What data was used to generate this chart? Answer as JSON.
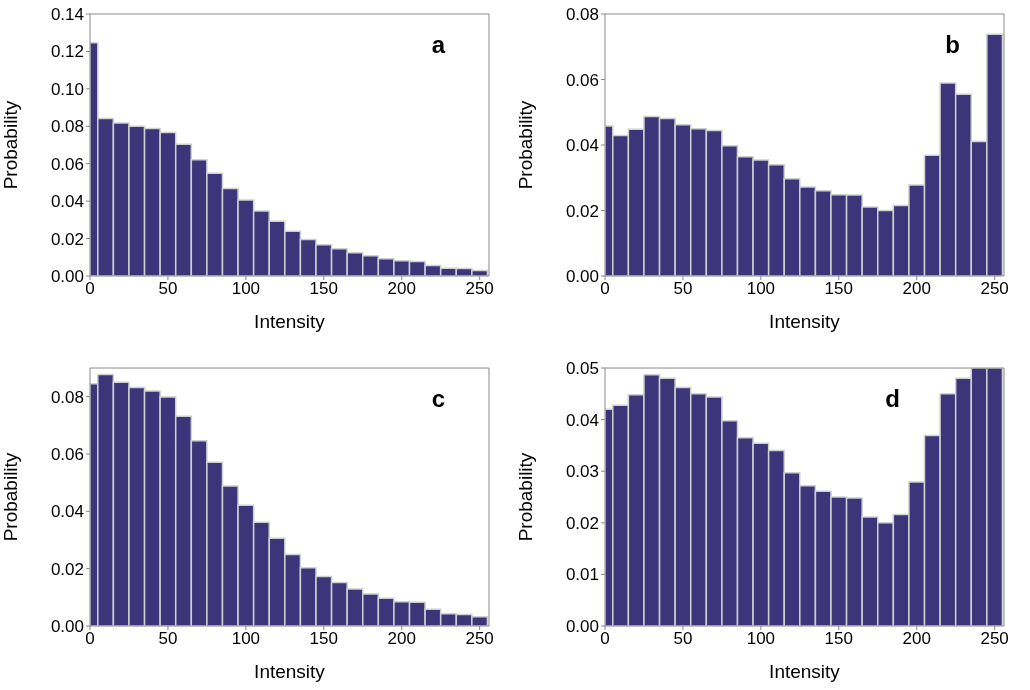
{
  "chart_data": [
    {
      "type": "histogram",
      "xlabel": "Intensity",
      "ylabel": "Probability",
      "annotations": [
        "a"
      ],
      "color": "#3c357a",
      "bins": [
        0,
        5,
        15,
        25,
        35,
        45,
        55,
        65,
        75,
        85,
        95,
        105,
        115,
        125,
        135,
        145,
        155,
        165,
        175,
        185,
        195,
        205,
        215,
        225,
        235,
        245,
        255
      ],
      "values": [
        0.1247,
        0.0842,
        0.0818,
        0.08,
        0.0788,
        0.0767,
        0.0704,
        0.0621,
        0.0549,
        0.0467,
        0.0406,
        0.0347,
        0.0293,
        0.0239,
        0.0195,
        0.0167,
        0.0145,
        0.0124,
        0.0108,
        0.0092,
        0.0082,
        0.0078,
        0.0056,
        0.0042,
        0.004,
        0.003
      ],
      "xlim": [
        0,
        256
      ],
      "xticks": [
        0,
        50,
        100,
        150,
        200,
        250
      ],
      "ylim": [
        0,
        0.14
      ],
      "yticks": [
        {
          "value": 0,
          "label": "0.00"
        },
        {
          "value": 0.02,
          "label": "0.02"
        },
        {
          "value": 0.04,
          "label": "0.04"
        },
        {
          "value": 0.06,
          "label": "0.06"
        },
        {
          "value": 0.08,
          "label": "0.08"
        },
        {
          "value": 0.1,
          "label": "0.10"
        },
        {
          "value": 0.12,
          "label": "0.12"
        },
        {
          "value": 0.14,
          "label": "0.14"
        }
      ]
    },
    {
      "type": "histogram",
      "xlabel": "Intensity",
      "ylabel": "Probability",
      "annotations": [
        "b"
      ],
      "color": "#3c357a",
      "bins": [
        0,
        5,
        15,
        25,
        35,
        45,
        55,
        65,
        75,
        85,
        95,
        105,
        115,
        125,
        135,
        145,
        155,
        165,
        175,
        185,
        195,
        205,
        215,
        225,
        235,
        245,
        255
      ],
      "values": [
        0.0458,
        0.0429,
        0.0448,
        0.0487,
        0.0481,
        0.0462,
        0.045,
        0.0444,
        0.0398,
        0.0364,
        0.0354,
        0.034,
        0.0297,
        0.0272,
        0.026,
        0.0248,
        0.0247,
        0.0211,
        0.02,
        0.0215,
        0.0278,
        0.0369,
        0.0589,
        0.0555,
        0.0411,
        0.0738
      ],
      "xlim": [
        0,
        256
      ],
      "xticks": [
        0,
        50,
        100,
        150,
        200,
        250
      ],
      "ylim": [
        0,
        0.08
      ],
      "yticks": [
        {
          "value": 0,
          "label": "0.00"
        },
        {
          "value": 0.02,
          "label": "0.02"
        },
        {
          "value": 0.04,
          "label": "0.04"
        },
        {
          "value": 0.06,
          "label": "0.06"
        },
        {
          "value": 0.08,
          "label": "0.08"
        }
      ]
    },
    {
      "type": "histogram",
      "xlabel": "Intensity",
      "ylabel": "Probability",
      "annotations": [
        "c"
      ],
      "color": "#3c357a",
      "bins": [
        0,
        5,
        15,
        25,
        35,
        45,
        55,
        65,
        75,
        85,
        95,
        105,
        115,
        125,
        135,
        145,
        155,
        165,
        175,
        185,
        195,
        205,
        215,
        225,
        235,
        245,
        255
      ],
      "values": [
        0.0845,
        0.0877,
        0.085,
        0.0832,
        0.082,
        0.0799,
        0.0732,
        0.0646,
        0.0571,
        0.0488,
        0.0421,
        0.0362,
        0.0306,
        0.0249,
        0.0203,
        0.0173,
        0.0152,
        0.0129,
        0.0112,
        0.0097,
        0.0085,
        0.0083,
        0.0058,
        0.0043,
        0.004,
        0.0032
      ],
      "xlim": [
        0,
        256
      ],
      "xticks": [
        0,
        50,
        100,
        150,
        200,
        250
      ],
      "ylim": [
        0,
        0.09
      ],
      "yticks": [
        {
          "value": 0,
          "label": "0.00"
        },
        {
          "value": 0.02,
          "label": "0.02"
        },
        {
          "value": 0.04,
          "label": "0.04"
        },
        {
          "value": 0.06,
          "label": "0.06"
        },
        {
          "value": 0.08,
          "label": "0.08"
        }
      ]
    },
    {
      "type": "histogram",
      "xlabel": "Intensity",
      "ylabel": "Probability",
      "annotations": [
        "d"
      ],
      "color": "#3c357a",
      "bins": [
        0,
        5,
        15,
        25,
        35,
        45,
        55,
        65,
        75,
        85,
        95,
        105,
        115,
        125,
        135,
        145,
        155,
        165,
        175,
        185,
        195,
        205,
        215,
        225,
        235,
        245,
        255
      ],
      "values": [
        0.042,
        0.0428,
        0.0448,
        0.0487,
        0.048,
        0.0462,
        0.045,
        0.0444,
        0.0398,
        0.0365,
        0.0354,
        0.034,
        0.0297,
        0.0272,
        0.0261,
        0.025,
        0.0248,
        0.0211,
        0.02,
        0.0216,
        0.0279,
        0.0369,
        0.045,
        0.048,
        0.05,
        0.05
      ],
      "xlim": [
        0,
        256
      ],
      "xticks": [
        0,
        50,
        100,
        150,
        200,
        250
      ],
      "ylim": [
        0,
        0.05
      ],
      "yticks": [
        {
          "value": 0,
          "label": "0.00"
        },
        {
          "value": 0.01,
          "label": "0.01"
        },
        {
          "value": 0.02,
          "label": "0.02"
        },
        {
          "value": 0.03,
          "label": "0.03"
        },
        {
          "value": 0.04,
          "label": "0.04"
        },
        {
          "value": 0.05,
          "label": "0.05"
        }
      ]
    }
  ]
}
